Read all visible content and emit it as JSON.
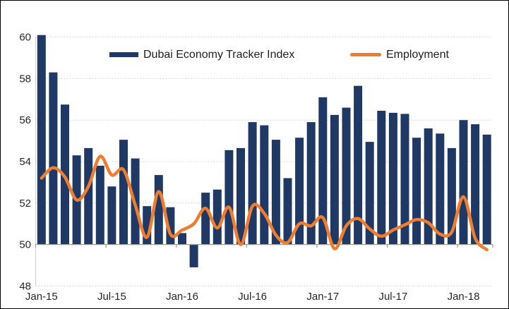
{
  "chart_data": {
    "type": "combo-bar-line",
    "title": "",
    "categories": [
      "Jan-15",
      "Feb-15",
      "Mar-15",
      "Apr-15",
      "May-15",
      "Jun-15",
      "Jul-15",
      "Aug-15",
      "Sep-15",
      "Oct-15",
      "Nov-15",
      "Dec-15",
      "Jan-16",
      "Feb-16",
      "Mar-16",
      "Apr-16",
      "May-16",
      "Jun-16",
      "Jul-16",
      "Aug-16",
      "Sep-16",
      "Oct-16",
      "Nov-16",
      "Dec-16",
      "Jan-17",
      "Feb-17",
      "Mar-17",
      "Apr-17",
      "May-17",
      "Jun-17",
      "Jul-17",
      "Aug-17",
      "Sep-17",
      "Oct-17",
      "Nov-17",
      "Dec-17",
      "Jan-18",
      "Feb-18",
      "Mar-18"
    ],
    "series": [
      {
        "name": "Dubai Economy Tracker Index",
        "type": "bar",
        "color": "#1F3864",
        "values": [
          60.1,
          58.3,
          56.75,
          54.3,
          54.65,
          53.8,
          52.8,
          55.05,
          54.15,
          51.85,
          53.35,
          51.8,
          50.55,
          48.9,
          52.5,
          52.65,
          54.55,
          54.65,
          55.9,
          55.75,
          55.05,
          53.2,
          55.15,
          55.9,
          57.1,
          56.25,
          56.6,
          57.65,
          54.95,
          56.45,
          56.35,
          56.3,
          55.15,
          55.6,
          55.35,
          54.65,
          56.0,
          55.8,
          55.3
        ]
      },
      {
        "name": "Employment",
        "type": "line",
        "color": "#ED7D31",
        "values": [
          53.2,
          53.7,
          53.25,
          52.15,
          52.8,
          54.25,
          53.35,
          53.6,
          51.9,
          50.35,
          52.55,
          50.5,
          50.7,
          51.0,
          51.75,
          50.8,
          51.8,
          50.0,
          51.85,
          51.5,
          50.45,
          50.1,
          51.0,
          50.9,
          51.3,
          49.8,
          50.9,
          51.25,
          50.75,
          50.4,
          50.7,
          50.95,
          51.2,
          51.05,
          50.5,
          50.6,
          52.3,
          50.3,
          49.75
        ]
      }
    ],
    "y_axis": {
      "min": 48,
      "max": 60.8,
      "tick_step": 2,
      "tick_labels": [
        "48",
        "50",
        "52",
        "54",
        "56",
        "58",
        "60"
      ],
      "bar_baseline": 50
    },
    "x_axis": {
      "tick_labels": [
        "Jan-15",
        "Jul-15",
        "Jan-16",
        "Jul-16",
        "Jan-17",
        "Jul-17",
        "Jan-18"
      ],
      "tick_interval_months": 6
    },
    "legend": {
      "position": "top-inside",
      "entries": [
        "Dubai Economy Tracker Index",
        "Employment"
      ]
    },
    "grid": "horizontal-dotted"
  },
  "colors": {
    "bar": "#1F3864",
    "line": "#ED7D31",
    "gridline": "#D0D0D0",
    "axis": "#9E9E9E",
    "text": "#262626",
    "border": "#000000",
    "background": "#FFFFFF"
  }
}
